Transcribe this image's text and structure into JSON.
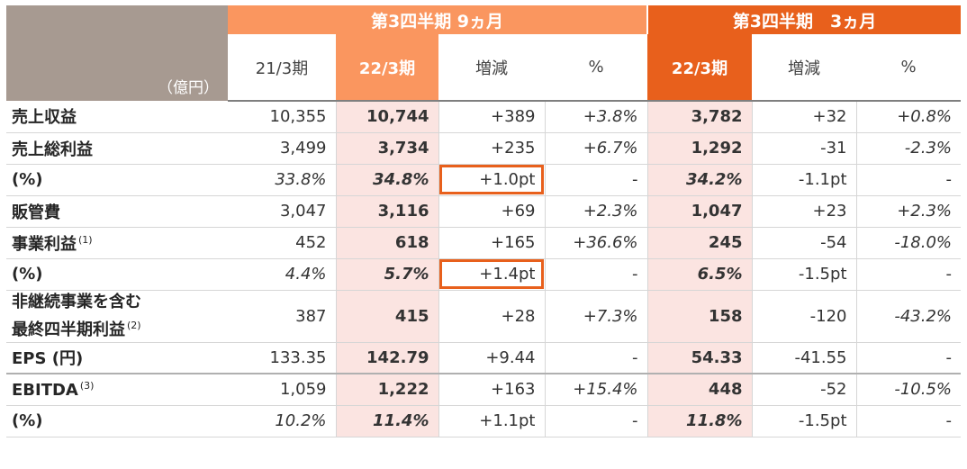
{
  "header": {
    "unit": "（億円）",
    "group_9m": "第3四半期 9ヵ月",
    "group_3m": "第3四半期　3ヵ月",
    "cols": [
      "21/3期",
      "22/3期",
      "増減",
      "%",
      "22/3期",
      "増減",
      "%"
    ]
  },
  "rows": [
    {
      "label": "売上収益",
      "note": "",
      "values": [
        "10,355",
        "10,744",
        "+389",
        "+3.8%",
        "3,782",
        "+32",
        "+0.8%"
      ]
    },
    {
      "label": "売上総利益",
      "note": "",
      "values": [
        "3,499",
        "3,734",
        "+235",
        "+6.7%",
        "1,292",
        "-31",
        "-2.3%"
      ]
    },
    {
      "label": "(%)",
      "note": "",
      "values": [
        "33.8%",
        "34.8%",
        "+1.0pt",
        "-",
        "34.2%",
        "-1.1pt",
        "-"
      ]
    },
    {
      "label": "販管費",
      "note": "",
      "values": [
        "3,047",
        "3,116",
        "+69",
        "+2.3%",
        "1,047",
        "+23",
        "+2.3%"
      ]
    },
    {
      "label": "事業利益",
      "note": "(1)",
      "values": [
        "452",
        "618",
        "+165",
        "+36.6%",
        "245",
        "-54",
        "-18.0%"
      ]
    },
    {
      "label": "(%)",
      "note": "",
      "values": [
        "4.4%",
        "5.7%",
        "+1.4pt",
        "-",
        "6.5%",
        "-1.5pt",
        "-"
      ]
    },
    {
      "label_line1": "非継続事業を含む",
      "label_line2": "最終四半期利益",
      "note": "(2)",
      "values": [
        "387",
        "415",
        "+28",
        "+7.3%",
        "158",
        "-120",
        "-43.2%"
      ]
    },
    {
      "label": "EPS (円)",
      "note": "",
      "values": [
        "133.35",
        "142.79",
        "+9.44",
        "-",
        "54.33",
        "-41.55",
        "-"
      ]
    },
    {
      "label": "EBITDA",
      "note": "(3)",
      "values": [
        "1,059",
        "1,222",
        "+163",
        "+15.4%",
        "448",
        "-52",
        "-10.5%"
      ]
    },
    {
      "label": "(%)",
      "note": "",
      "values": [
        "10.2%",
        "11.4%",
        "+1.1pt",
        "-",
        "11.8%",
        "-1.5pt",
        "-"
      ]
    }
  ]
}
